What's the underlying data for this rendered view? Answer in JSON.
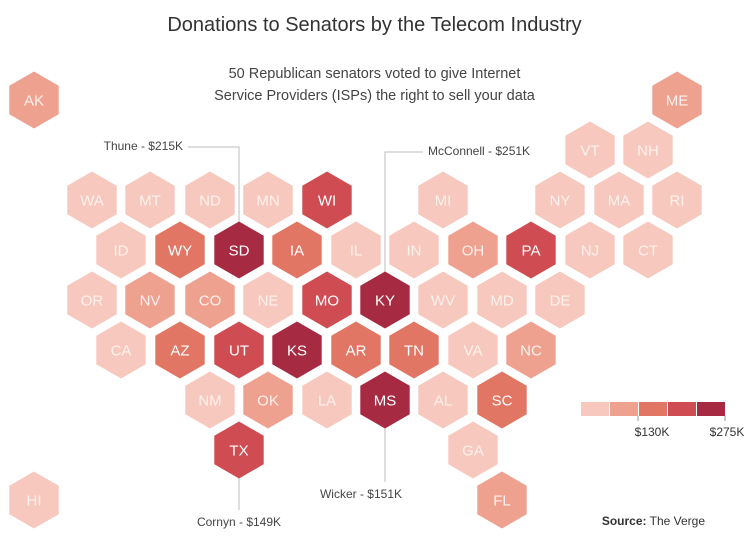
{
  "title": "Donations to Senators by the Telecom Industry",
  "subtitle_line1": "50 Republican senators voted to give Internet",
  "subtitle_line2": "Service Providers (ISPs) the right to sell your data",
  "source_label": "Source:",
  "source_value": "The Verge",
  "colors": [
    "#f7c9be",
    "#efa190",
    "#e07663",
    "#cf4c52",
    "#a72a43"
  ],
  "chart_data": {
    "type": "hex-tile-map",
    "title": "Donations to Senators by the Telecom Industry",
    "value_units": "donation level (ordinal bins 1-5)",
    "legend": {
      "bins": 5,
      "labels": [
        "$130K",
        "$275K"
      ]
    },
    "annotations": [
      {
        "state": "SD",
        "text": "Thune - $215K"
      },
      {
        "state": "KY",
        "text": "McConnell - $251K"
      },
      {
        "state": "MS",
        "text": "Wicker - $151K"
      },
      {
        "state": "TX",
        "text": "Cornyn - $149K"
      }
    ],
    "states": [
      {
        "abbr": "AK",
        "level": 2
      },
      {
        "abbr": "ME",
        "level": 2
      },
      {
        "abbr": "VT",
        "level": 1
      },
      {
        "abbr": "NH",
        "level": 1
      },
      {
        "abbr": "WA",
        "level": 1
      },
      {
        "abbr": "MT",
        "level": 1
      },
      {
        "abbr": "ND",
        "level": 1
      },
      {
        "abbr": "MN",
        "level": 1
      },
      {
        "abbr": "WI",
        "level": 4
      },
      {
        "abbr": "MI",
        "level": 1
      },
      {
        "abbr": "NY",
        "level": 1
      },
      {
        "abbr": "MA",
        "level": 1
      },
      {
        "abbr": "RI",
        "level": 1
      },
      {
        "abbr": "ID",
        "level": 1
      },
      {
        "abbr": "WY",
        "level": 3
      },
      {
        "abbr": "SD",
        "level": 5
      },
      {
        "abbr": "IA",
        "level": 3
      },
      {
        "abbr": "IL",
        "level": 1
      },
      {
        "abbr": "IN",
        "level": 1
      },
      {
        "abbr": "OH",
        "level": 2
      },
      {
        "abbr": "PA",
        "level": 4
      },
      {
        "abbr": "NJ",
        "level": 1
      },
      {
        "abbr": "CT",
        "level": 1
      },
      {
        "abbr": "OR",
        "level": 1
      },
      {
        "abbr": "NV",
        "level": 2
      },
      {
        "abbr": "CO",
        "level": 2
      },
      {
        "abbr": "NE",
        "level": 1
      },
      {
        "abbr": "MO",
        "level": 4
      },
      {
        "abbr": "KY",
        "level": 5
      },
      {
        "abbr": "WV",
        "level": 1
      },
      {
        "abbr": "MD",
        "level": 1
      },
      {
        "abbr": "DE",
        "level": 1
      },
      {
        "abbr": "CA",
        "level": 1
      },
      {
        "abbr": "AZ",
        "level": 3
      },
      {
        "abbr": "UT",
        "level": 4
      },
      {
        "abbr": "KS",
        "level": 5
      },
      {
        "abbr": "AR",
        "level": 3
      },
      {
        "abbr": "TN",
        "level": 3
      },
      {
        "abbr": "VA",
        "level": 1
      },
      {
        "abbr": "NC",
        "level": 2
      },
      {
        "abbr": "NM",
        "level": 1
      },
      {
        "abbr": "OK",
        "level": 2
      },
      {
        "abbr": "LA",
        "level": 1
      },
      {
        "abbr": "MS",
        "level": 5
      },
      {
        "abbr": "AL",
        "level": 1
      },
      {
        "abbr": "SC",
        "level": 3
      },
      {
        "abbr": "TX",
        "level": 4
      },
      {
        "abbr": "GA",
        "level": 1
      },
      {
        "abbr": "HI",
        "level": 1
      },
      {
        "abbr": "FL",
        "level": 2
      }
    ]
  }
}
